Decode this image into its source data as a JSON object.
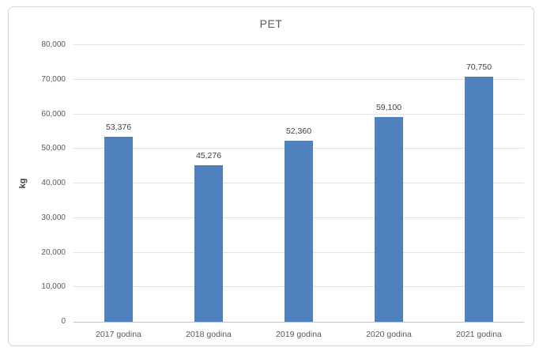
{
  "chart_data": {
    "type": "bar",
    "title": "PET",
    "ylabel": "kg",
    "xlabel": "",
    "categories": [
      "2017 godina",
      "2018 godina",
      "2019 godina",
      "2020 godina",
      "2021 godina"
    ],
    "values": [
      53376,
      45276,
      52360,
      59100,
      70750
    ],
    "value_labels": [
      "53,376",
      "45,276",
      "52,360",
      "59,100",
      "70,750"
    ],
    "ylim": [
      0,
      80000
    ],
    "ytick_step": 10000,
    "ytick_labels": [
      "0",
      "10,000",
      "20,000",
      "30,000",
      "40,000",
      "50,000",
      "60,000",
      "70,000",
      "80,000"
    ],
    "grid": "horizontal",
    "legend_position": "none",
    "bar_color": "#4e81bd",
    "gridline_color": "#e2e2e2",
    "axis_line_color": "#c3c3c3",
    "title_color": "#595959",
    "tick_label_color": "#595959",
    "value_label_color": "#404040"
  }
}
